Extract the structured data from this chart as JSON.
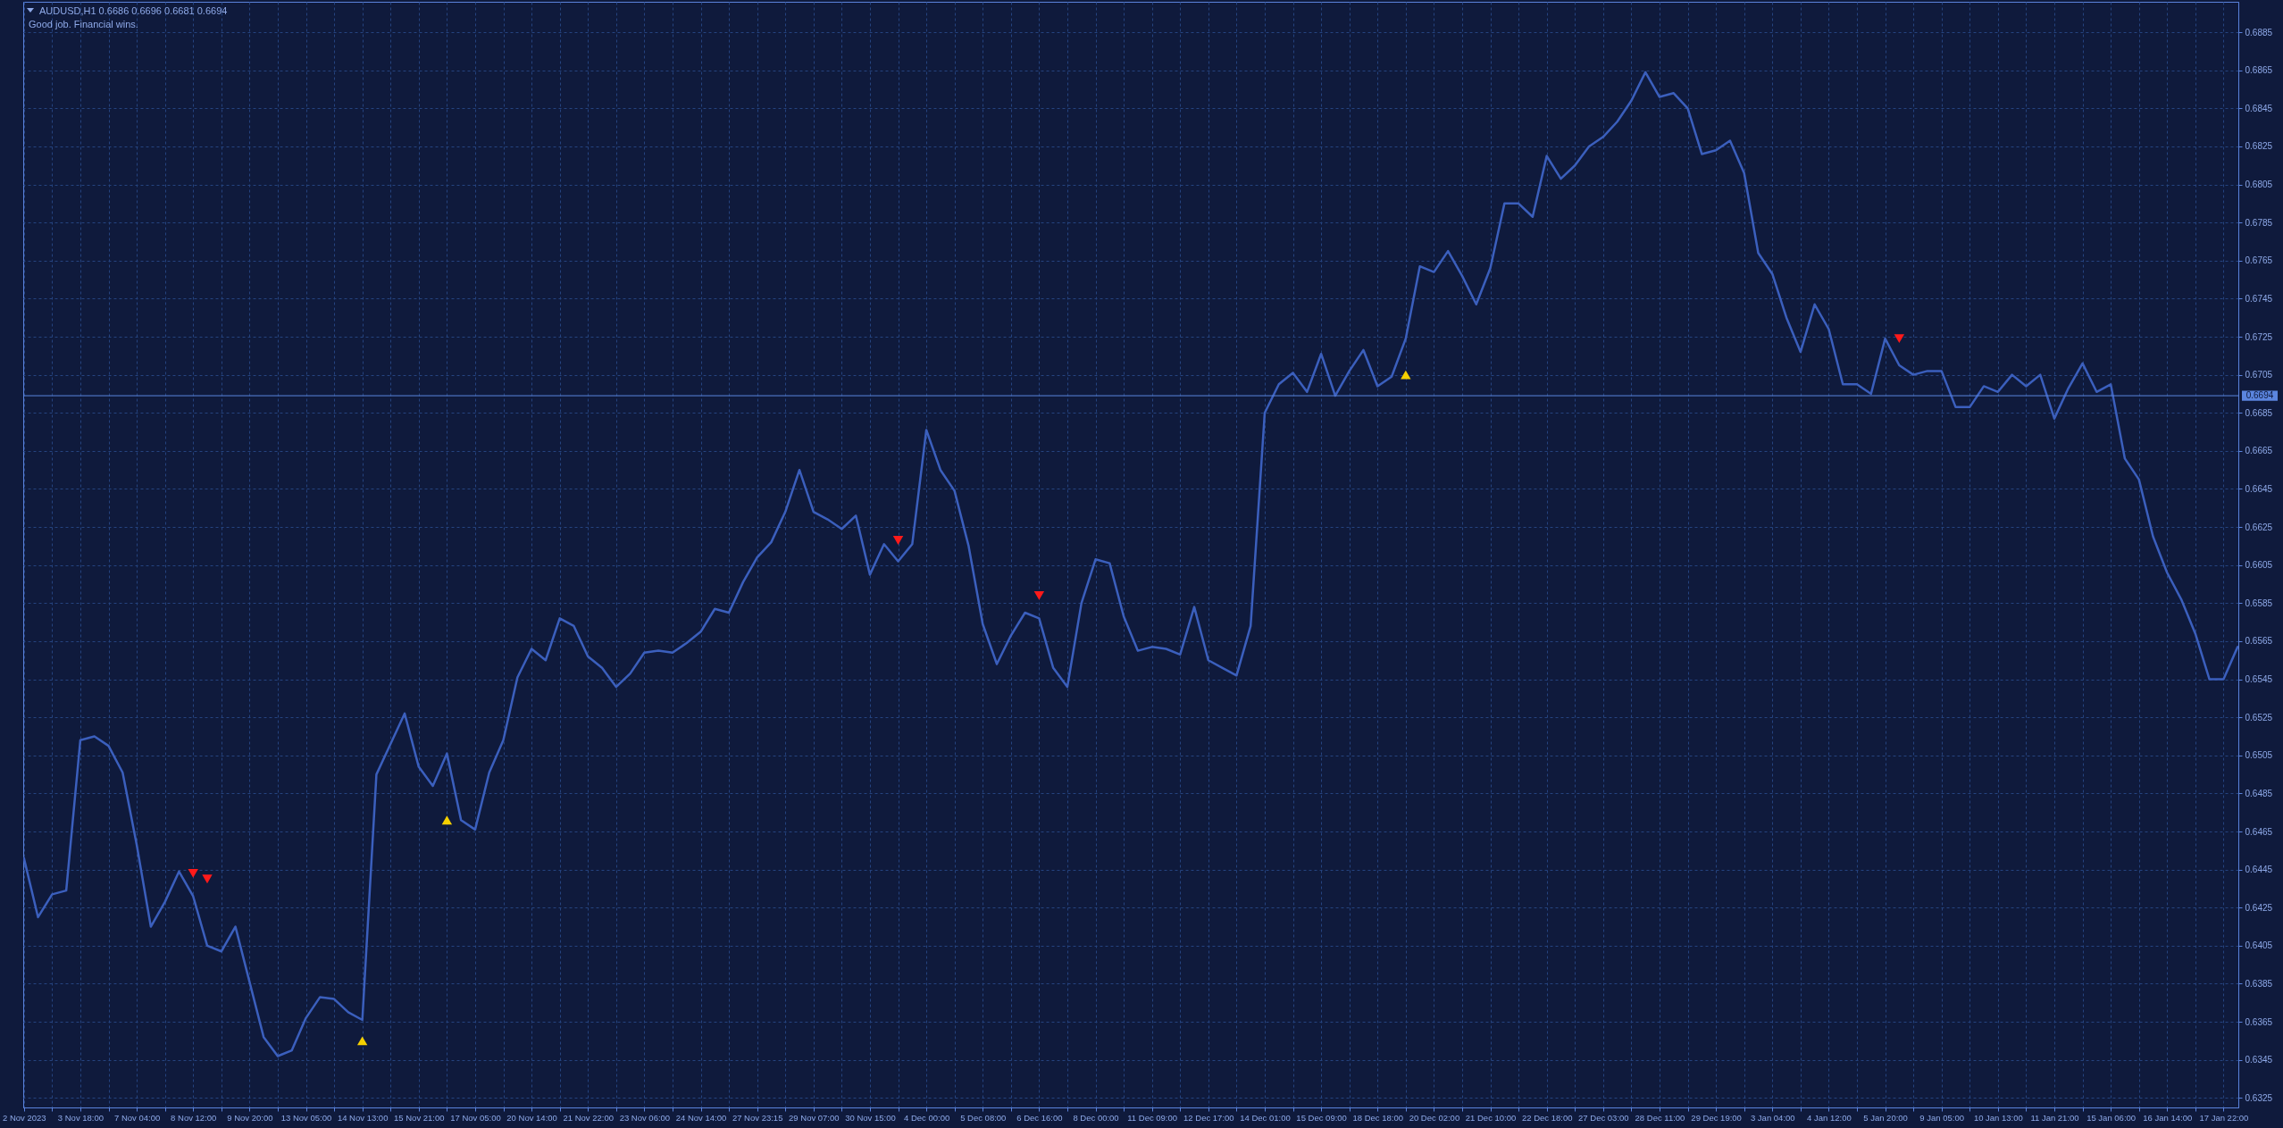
{
  "chart_data": {
    "type": "line",
    "title": "AUDUSD,H1  0.6686 0.6696 0.6681 0.6694",
    "subtitle": "Good job. Financial wins.",
    "categories": [
      "2 Nov 2023",
      null,
      null,
      null,
      "3 Nov 18:00",
      null,
      null,
      null,
      "7 Nov 04:00",
      null,
      null,
      null,
      "8 Nov 12:00",
      null,
      null,
      null,
      "9 Nov 20:00",
      null,
      null,
      null,
      "13 Nov 05:00",
      null,
      null,
      null,
      "14 Nov 13:00",
      null,
      null,
      null,
      "15 Nov 21:00",
      null,
      null,
      null,
      "17 Nov 05:00",
      null,
      null,
      null,
      "20 Nov 14:00",
      null,
      null,
      null,
      "21 Nov 22:00",
      null,
      null,
      null,
      "23 Nov 06:00",
      null,
      null,
      null,
      "24 Nov 14:00",
      null,
      null,
      null,
      "27 Nov 23:15",
      null,
      null,
      null,
      "29 Nov 07:00",
      null,
      null,
      null,
      "30 Nov 15:00",
      null,
      null,
      null,
      "4 Dec 00:00",
      null,
      null,
      null,
      "5 Dec 08:00",
      null,
      null,
      null,
      "6 Dec 16:00",
      null,
      null,
      null,
      "8 Dec 00:00",
      null,
      null,
      null,
      "11 Dec 09:00",
      null,
      null,
      null,
      "12 Dec 17:00",
      null,
      null,
      null,
      "14 Dec 01:00",
      null,
      null,
      null,
      "15 Dec 09:00",
      null,
      null,
      null,
      "18 Dec 18:00",
      null,
      null,
      null,
      "20 Dec 02:00",
      null,
      null,
      null,
      "21 Dec 10:00",
      null,
      null,
      null,
      "22 Dec 18:00",
      null,
      null,
      null,
      "27 Dec 03:00",
      null,
      null,
      null,
      "28 Dec 11:00",
      null,
      null,
      null,
      "29 Dec 19:00",
      null,
      null,
      null,
      "3 Jan 04:00",
      null,
      null,
      null,
      "4 Jan 12:00",
      null,
      null,
      null,
      "5 Jan 20:00",
      null,
      null,
      null,
      "9 Jan 05:00",
      null,
      null,
      null,
      "10 Jan 13:00",
      null,
      null,
      null,
      "11 Jan 21:00",
      null,
      null,
      null,
      "15 Jan 06:00",
      null,
      null,
      null,
      "16 Jan 14:00",
      null,
      null,
      null,
      "17 Jan 22:00",
      null
    ],
    "ylim": [
      0.632,
      0.6901
    ],
    "yticks": [
      0.6325,
      0.6345,
      0.6365,
      0.6385,
      0.6405,
      0.6425,
      0.6445,
      0.6465,
      0.6485,
      0.6505,
      0.6525,
      0.6545,
      0.6565,
      0.6585,
      0.6605,
      0.6625,
      0.6645,
      0.6665,
      0.6685,
      0.6705,
      0.6725,
      0.6745,
      0.6765,
      0.6785,
      0.6805,
      0.6825,
      0.6845,
      0.6865,
      0.6885
    ],
    "grid": true,
    "ref_lines": [
      {
        "axis": "y",
        "value": 0.6694,
        "label": "0.6694",
        "color": "#5b85de"
      }
    ],
    "series": [
      {
        "color": "#3b5fbd",
        "values": [
          0.6451,
          0.642,
          0.6432,
          0.6434,
          0.6513,
          0.6515,
          0.651,
          0.6496,
          0.6458,
          0.6415,
          0.6428,
          0.6444,
          0.6431,
          0.6405,
          0.6402,
          0.6415,
          0.6386,
          0.6357,
          0.6347,
          0.635,
          0.6367,
          0.6378,
          0.6377,
          0.637,
          0.6366,
          0.6495,
          0.6511,
          0.6527,
          0.6499,
          0.6489,
          0.6506,
          0.6471,
          0.6466,
          0.6496,
          0.6513,
          0.6546,
          0.6561,
          0.6555,
          0.6577,
          0.6573,
          0.6557,
          0.6551,
          0.6541,
          0.6548,
          0.6559,
          0.656,
          0.6559,
          0.6564,
          0.657,
          0.6582,
          0.658,
          0.6596,
          0.6609,
          0.6617,
          0.6633,
          0.6655,
          0.6633,
          0.6629,
          0.6624,
          0.6631,
          0.66,
          0.6616,
          0.6607,
          0.6616,
          0.6676,
          0.6655,
          0.6644,
          0.6615,
          0.6574,
          0.6553,
          0.6568,
          0.658,
          0.6577,
          0.6551,
          0.6541,
          0.6585,
          0.6608,
          0.6606,
          0.6578,
          0.656,
          0.6562,
          0.6561,
          0.6558,
          0.6583,
          0.6555,
          0.6551,
          0.6547,
          0.6573,
          0.6685,
          0.67,
          0.6706,
          0.6696,
          0.6716,
          0.6694,
          0.6707,
          0.6718,
          0.6699,
          0.6704,
          0.6724,
          0.6762,
          0.6759,
          0.677,
          0.6757,
          0.6742,
          0.6761,
          0.6795,
          0.6795,
          0.6788,
          0.682,
          0.6808,
          0.6815,
          0.6825,
          0.683,
          0.6838,
          0.6849,
          0.6864,
          0.6851,
          0.6853,
          0.6845,
          0.6821,
          0.6823,
          0.6828,
          0.6811,
          0.6769,
          0.6758,
          0.6735,
          0.6717,
          0.6742,
          0.6729,
          0.67,
          0.67,
          0.6695,
          0.6724,
          0.671,
          0.6705,
          0.6707,
          0.6707,
          0.6688,
          0.6688,
          0.6699,
          0.6696,
          0.6705,
          0.6699,
          0.6705,
          0.6682,
          0.6698,
          0.6711,
          0.6696,
          0.67,
          0.6661,
          0.665,
          0.662,
          0.6601,
          0.6587,
          0.6569,
          0.6545,
          0.6545,
          0.6562
        ]
      },
      {
        "type": "scatter",
        "color": "#f5d000",
        "marker": "triangle",
        "values": [
          null,
          null,
          null,
          null,
          null,
          null,
          null,
          null,
          null,
          null,
          null,
          null,
          null,
          null,
          null,
          null,
          null,
          null,
          null,
          null,
          null,
          null,
          null,
          null,
          0.6355,
          null,
          null,
          null,
          null,
          null,
          0.6471,
          null,
          null,
          null,
          null,
          null,
          null,
          null,
          null,
          null,
          null,
          null,
          null,
          null,
          null,
          null,
          null,
          null,
          null,
          null,
          null,
          null,
          null,
          null,
          null,
          null,
          null,
          null,
          null,
          null,
          null,
          null,
          null,
          null,
          null,
          null,
          null,
          null,
          null,
          null,
          null,
          null,
          null,
          null,
          null,
          null,
          null,
          null,
          null,
          null,
          null,
          null,
          null,
          null,
          null,
          null,
          null,
          null,
          null,
          null,
          null,
          null,
          null,
          null,
          null,
          null,
          null,
          null,
          0.6705,
          null,
          null,
          null,
          null,
          null,
          null,
          null,
          null,
          null,
          null,
          null,
          null,
          null,
          null,
          null,
          null,
          null,
          null,
          null,
          null,
          null,
          null,
          null,
          null,
          null,
          null,
          null,
          null,
          null,
          null,
          null,
          null,
          null,
          null,
          null,
          null,
          null,
          null,
          null,
          null,
          null,
          null,
          null,
          null,
          null,
          null,
          null,
          null,
          null,
          null,
          null,
          null,
          null,
          null,
          null,
          null,
          null,
          null,
          null
        ]
      },
      {
        "type": "scatter",
        "color": "#ff1a1a",
        "marker": "triangle",
        "values": [
          null,
          null,
          null,
          null,
          null,
          null,
          null,
          null,
          null,
          null,
          null,
          null,
          0.6443,
          0.644,
          null,
          null,
          null,
          null,
          null,
          null,
          null,
          null,
          null,
          null,
          null,
          null,
          null,
          null,
          null,
          null,
          null,
          null,
          null,
          null,
          null,
          null,
          null,
          null,
          null,
          null,
          null,
          null,
          null,
          null,
          null,
          null,
          null,
          null,
          null,
          null,
          null,
          null,
          null,
          null,
          null,
          null,
          null,
          null,
          null,
          null,
          null,
          null,
          0.6618,
          null,
          null,
          null,
          null,
          null,
          null,
          null,
          null,
          null,
          0.6589,
          null,
          null,
          null,
          null,
          null,
          null,
          null,
          null,
          null,
          null,
          null,
          null,
          null,
          null,
          null,
          null,
          null,
          null,
          null,
          null,
          null,
          null,
          null,
          null,
          null,
          null,
          null,
          null,
          null,
          null,
          null,
          null,
          null,
          null,
          null,
          null,
          null,
          null,
          null,
          null,
          null,
          null,
          null,
          null,
          null,
          null,
          null,
          null,
          null,
          null,
          null,
          null,
          null,
          null,
          null,
          null,
          null,
          null,
          null,
          null,
          0.6724,
          null,
          null,
          null,
          null,
          null,
          null,
          null,
          null,
          null,
          null,
          null,
          null,
          null,
          null,
          null,
          null,
          null,
          null,
          null,
          null,
          null,
          null,
          null,
          null
        ]
      }
    ]
  }
}
